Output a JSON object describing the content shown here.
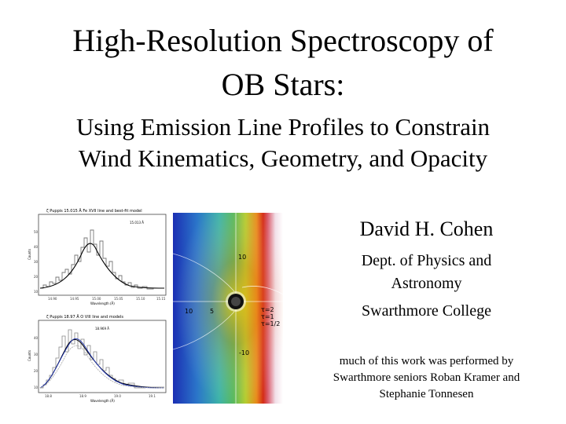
{
  "slide": {
    "title_line1": "High-Resolution Spectroscopy of",
    "title_line2": "OB Stars:",
    "subtitle_line1": "Using Emission Line Profiles to Constrain",
    "subtitle_line2": "Wind Kinematics, Geometry, and Opacity",
    "author": "David H. Cohen",
    "dept_line1": "Dept. of Physics and",
    "dept_line2": "Astronomy",
    "college": "Swarthmore College",
    "credit_line1": "much of this work was performed by",
    "credit_line2": "Swarthmore seniors Roban Kramer and",
    "credit_line3": "Stephanie Tonnesen"
  },
  "figures": {
    "top_plot": {
      "title": "ζ Puppis 15.015 Å Fe XVII line and best-fit model",
      "label": "15.013 Å",
      "ylabel": "Counts",
      "xlabel": "Wavelength (Å)",
      "xticks": [
        "14.90",
        "14.95",
        "15.00",
        "15.05",
        "15.10",
        "15.15"
      ],
      "yticks": [
        "50",
        "40",
        "30",
        "20",
        "10"
      ]
    },
    "bottom_plot": {
      "title": "ζ Puppis 18.97 Å O VIII line and models",
      "label": "18.969 Å",
      "ylabel": "Counts",
      "xlabel": "Wavelength (Å)",
      "xticks": [
        "18.8",
        "18.9",
        "19.0",
        "19.1"
      ],
      "yticks": [
        "40",
        "30",
        "20",
        "10"
      ]
    },
    "wind_map": {
      "y_labels": [
        "10",
        "-10"
      ],
      "x_labels": [
        "10",
        "5"
      ],
      "tau_labels": [
        "τ=2",
        "τ=1",
        "τ=1/2"
      ]
    }
  }
}
